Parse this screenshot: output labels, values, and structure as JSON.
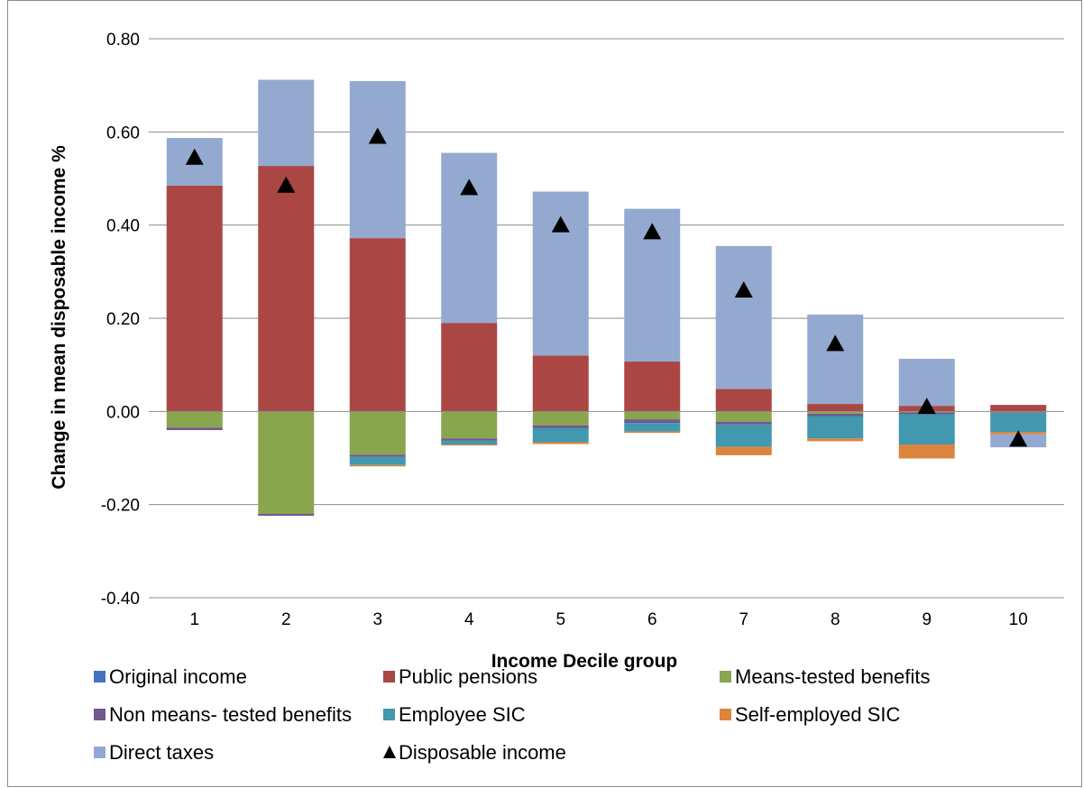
{
  "chart_data": {
    "type": "bar",
    "stacked": true,
    "title": "",
    "xlabel": "Income Decile group",
    "ylabel": "Change in mean disposable income %",
    "ylim": [
      -0.4,
      0.8
    ],
    "yticks": [
      "-0.40",
      "-0.20",
      "0.00",
      "0.20",
      "0.40",
      "0.60",
      "0.80"
    ],
    "yticks_values": [
      -0.4,
      -0.2,
      0.0,
      0.2,
      0.4,
      0.6,
      0.8
    ],
    "grid": true,
    "legend_position": "bottom",
    "categories": [
      "1",
      "2",
      "3",
      "4",
      "5",
      "6",
      "7",
      "8",
      "9",
      "10"
    ],
    "series": [
      {
        "name": "Original income",
        "color": "#4472c4",
        "values": [
          0,
          0,
          0,
          0,
          0,
          0,
          0,
          0,
          0,
          0
        ]
      },
      {
        "name": "Public pensions",
        "color": "#aa4643",
        "values": [
          0.485,
          0.527,
          0.372,
          0.19,
          0.12,
          0.107,
          0.048,
          0.016,
          0.012,
          0.014
        ]
      },
      {
        "name": "Means-tested benefits",
        "color": "#89a54e",
        "values": [
          -0.035,
          -0.22,
          -0.093,
          -0.058,
          -0.03,
          -0.017,
          -0.022,
          -0.005,
          -0.002,
          -0.002
        ]
      },
      {
        "name": "Non means- tested benefits",
        "color": "#71588f",
        "values": [
          -0.005,
          -0.004,
          -0.004,
          -0.005,
          -0.006,
          -0.008,
          -0.006,
          -0.005,
          -0.004,
          -0.002
        ]
      },
      {
        "name": "Employee SIC",
        "color": "#4198af",
        "values": [
          0,
          0,
          -0.018,
          -0.008,
          -0.03,
          -0.018,
          -0.048,
          -0.048,
          -0.065,
          -0.04
        ]
      },
      {
        "name": "Self-employed SIC",
        "color": "#db843d",
        "values": [
          0,
          0,
          -0.003,
          -0.002,
          -0.004,
          -0.003,
          -0.018,
          -0.006,
          -0.03,
          -0.005
        ]
      },
      {
        "name": "Direct taxes",
        "color": "#93a9cf",
        "values": [
          0.102,
          0.185,
          0.337,
          0.365,
          0.352,
          0.328,
          0.307,
          0.192,
          0.101,
          -0.028
        ]
      }
    ],
    "markers": {
      "name": "Disposable income",
      "color": "#000000",
      "shape": "triangle",
      "values": [
        0.545,
        0.485,
        0.59,
        0.48,
        0.4,
        0.385,
        0.26,
        0.145,
        0.01,
        -0.06
      ]
    },
    "legend_rows": [
      [
        "Original income",
        "Public pensions",
        "Means-tested benefits"
      ],
      [
        "Non means- tested benefits",
        "Employee SIC",
        "Self-employed SIC"
      ],
      [
        "Direct taxes",
        "Disposable income"
      ]
    ]
  }
}
